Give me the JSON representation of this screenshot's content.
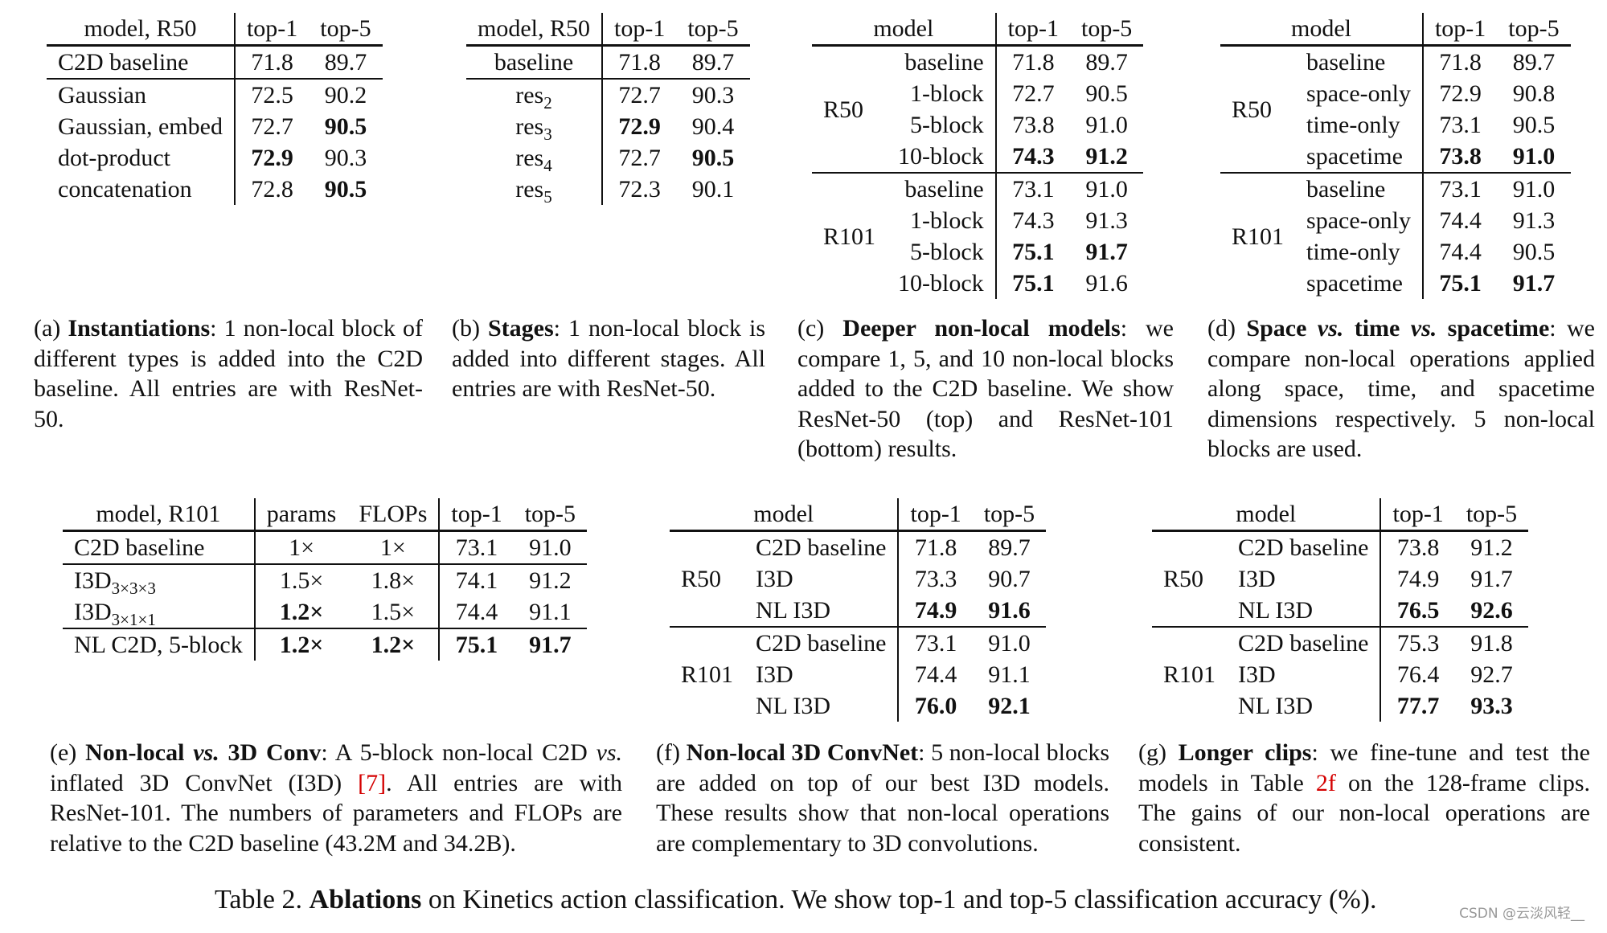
{
  "a": {
    "headers": [
      "model, R50",
      "top-1",
      "top-5"
    ],
    "baseline": [
      "C2D baseline",
      "71.8",
      "89.7"
    ],
    "rows": [
      [
        "Gaussian",
        "72.5",
        "90.2"
      ],
      [
        "Gaussian, embed",
        "72.7",
        "90.5"
      ],
      [
        "dot-product",
        "72.9",
        "90.3"
      ],
      [
        "concatenation",
        "72.8",
        "90.5"
      ]
    ],
    "cap_label": "(a)",
    "cap_title": "Instantiations",
    "cap_text": ": 1 non-local block of different types is added into the C2D baseline. All entries are with ResNet-50."
  },
  "b": {
    "headers": [
      "model, R50",
      "top-1",
      "top-5"
    ],
    "baseline": [
      "baseline",
      "71.8",
      "89.7"
    ],
    "rows": [
      [
        "res",
        "2",
        "72.7",
        "90.3"
      ],
      [
        "res",
        "3",
        "72.9",
        "90.4"
      ],
      [
        "res",
        "4",
        "72.7",
        "90.5"
      ],
      [
        "res",
        "5",
        "72.3",
        "90.1"
      ]
    ],
    "cap_label": "(b)",
    "cap_title": "Stages",
    "cap_text": ": 1 non-local block is added into different stages. All entries are with ResNet-50."
  },
  "c": {
    "headers": [
      "model",
      "top-1",
      "top-5"
    ],
    "groups": [
      {
        "name": "R50",
        "rows": [
          [
            "baseline",
            "71.8",
            "89.7"
          ],
          [
            "1-block",
            "72.7",
            "90.5"
          ],
          [
            "5-block",
            "73.8",
            "91.0"
          ],
          [
            "10-block",
            "74.3",
            "91.2"
          ]
        ]
      },
      {
        "name": "R101",
        "rows": [
          [
            "baseline",
            "73.1",
            "91.0"
          ],
          [
            "1-block",
            "74.3",
            "91.3"
          ],
          [
            "5-block",
            "75.1",
            "91.7"
          ],
          [
            "10-block",
            "75.1",
            "91.6"
          ]
        ]
      }
    ],
    "cap_label": "(c)",
    "cap_title": "Deeper non-local models",
    "cap_text": ": we compare 1, 5, and 10 non-local blocks added to the C2D baseline. We show ResNet-50 (top) and ResNet-101 (bottom) results."
  },
  "d": {
    "headers": [
      "model",
      "top-1",
      "top-5"
    ],
    "groups": [
      {
        "name": "R50",
        "rows": [
          [
            "baseline",
            "71.8",
            "89.7"
          ],
          [
            "space-only",
            "72.9",
            "90.8"
          ],
          [
            "time-only",
            "73.1",
            "90.5"
          ],
          [
            "spacetime",
            "73.8",
            "91.0"
          ]
        ]
      },
      {
        "name": "R101",
        "rows": [
          [
            "baseline",
            "73.1",
            "91.0"
          ],
          [
            "space-only",
            "74.4",
            "91.3"
          ],
          [
            "time-only",
            "74.4",
            "90.5"
          ],
          [
            "spacetime",
            "75.1",
            "91.7"
          ]
        ]
      }
    ],
    "cap_label": "(d)",
    "cap_title_1": "Space",
    "cap_vs": "vs.",
    "cap_title_2": "time",
    "cap_title_3": "spacetime",
    "cap_text": ": we compare non-local operations applied along space, time, and spacetime dimensions respectively. 5 non-local blocks are used."
  },
  "e": {
    "headers": [
      "model, R101",
      "params",
      "FLOPs",
      "top-1",
      "top-5"
    ],
    "baseline": [
      "C2D baseline",
      "1×",
      "1×",
      "73.1",
      "91.0"
    ],
    "rows": [
      [
        "I3D",
        "3×3×3",
        "1.5×",
        "1.8×",
        "74.1",
        "91.2"
      ],
      [
        "I3D",
        "3×1×1",
        "1.2×",
        "1.5×",
        "74.4",
        "91.1"
      ]
    ],
    "last": [
      "NL C2D, 5-block",
      "1.2×",
      "1.2×",
      "75.1",
      "91.7"
    ],
    "cap_label": "(e)",
    "cap_title_1": "Non-local",
    "cap_vs": "vs.",
    "cap_title_2": "3D Conv",
    "cap_text_1": ": A 5-block non-local C2D",
    "cap_text_2": "inflated 3D ConvNet (I3D)",
    "cap_ref": "[7]",
    "cap_text_3": ". All entries are with ResNet-101. The numbers of parameters and FLOPs are relative to the C2D baseline (43.2M and 34.2B)."
  },
  "f": {
    "headers": [
      "model",
      "top-1",
      "top-5"
    ],
    "groups": [
      {
        "name": "R50",
        "rows": [
          [
            "C2D baseline",
            "71.8",
            "89.7"
          ],
          [
            "I3D",
            "73.3",
            "90.7"
          ],
          [
            "NL I3D",
            "74.9",
            "91.6"
          ]
        ]
      },
      {
        "name": "R101",
        "rows": [
          [
            "C2D baseline",
            "73.1",
            "91.0"
          ],
          [
            "I3D",
            "74.4",
            "91.1"
          ],
          [
            "NL I3D",
            "76.0",
            "92.1"
          ]
        ]
      }
    ],
    "cap_label": "(f)",
    "cap_title": "Non-local 3D ConvNet",
    "cap_text": ": 5 non-local blocks are added on top of our best I3D models. These results show that non-local operations are complementary to 3D convolutions."
  },
  "g": {
    "headers": [
      "model",
      "top-1",
      "top-5"
    ],
    "groups": [
      {
        "name": "R50",
        "rows": [
          [
            "C2D baseline",
            "73.8",
            "91.2"
          ],
          [
            "I3D",
            "74.9",
            "91.7"
          ],
          [
            "NL I3D",
            "76.5",
            "92.6"
          ]
        ]
      },
      {
        "name": "R101",
        "rows": [
          [
            "C2D baseline",
            "75.3",
            "91.8"
          ],
          [
            "I3D",
            "76.4",
            "92.7"
          ],
          [
            "NL I3D",
            "77.7",
            "93.3"
          ]
        ]
      }
    ],
    "cap_label": "(g)",
    "cap_title": "Longer clips",
    "cap_text_1": ": we fine-tune and test the models in Table",
    "cap_ref": "2f",
    "cap_text_2": "on the 128-frame clips. The gains of our non-local operations are consistent."
  },
  "main_caption": {
    "label": "Table 2.",
    "bold": "Ablations",
    "text": "on Kinetics action classification. We show top-1 and top-5 classification accuracy (%)."
  },
  "watermark": "CSDN @云淡风轻__"
}
